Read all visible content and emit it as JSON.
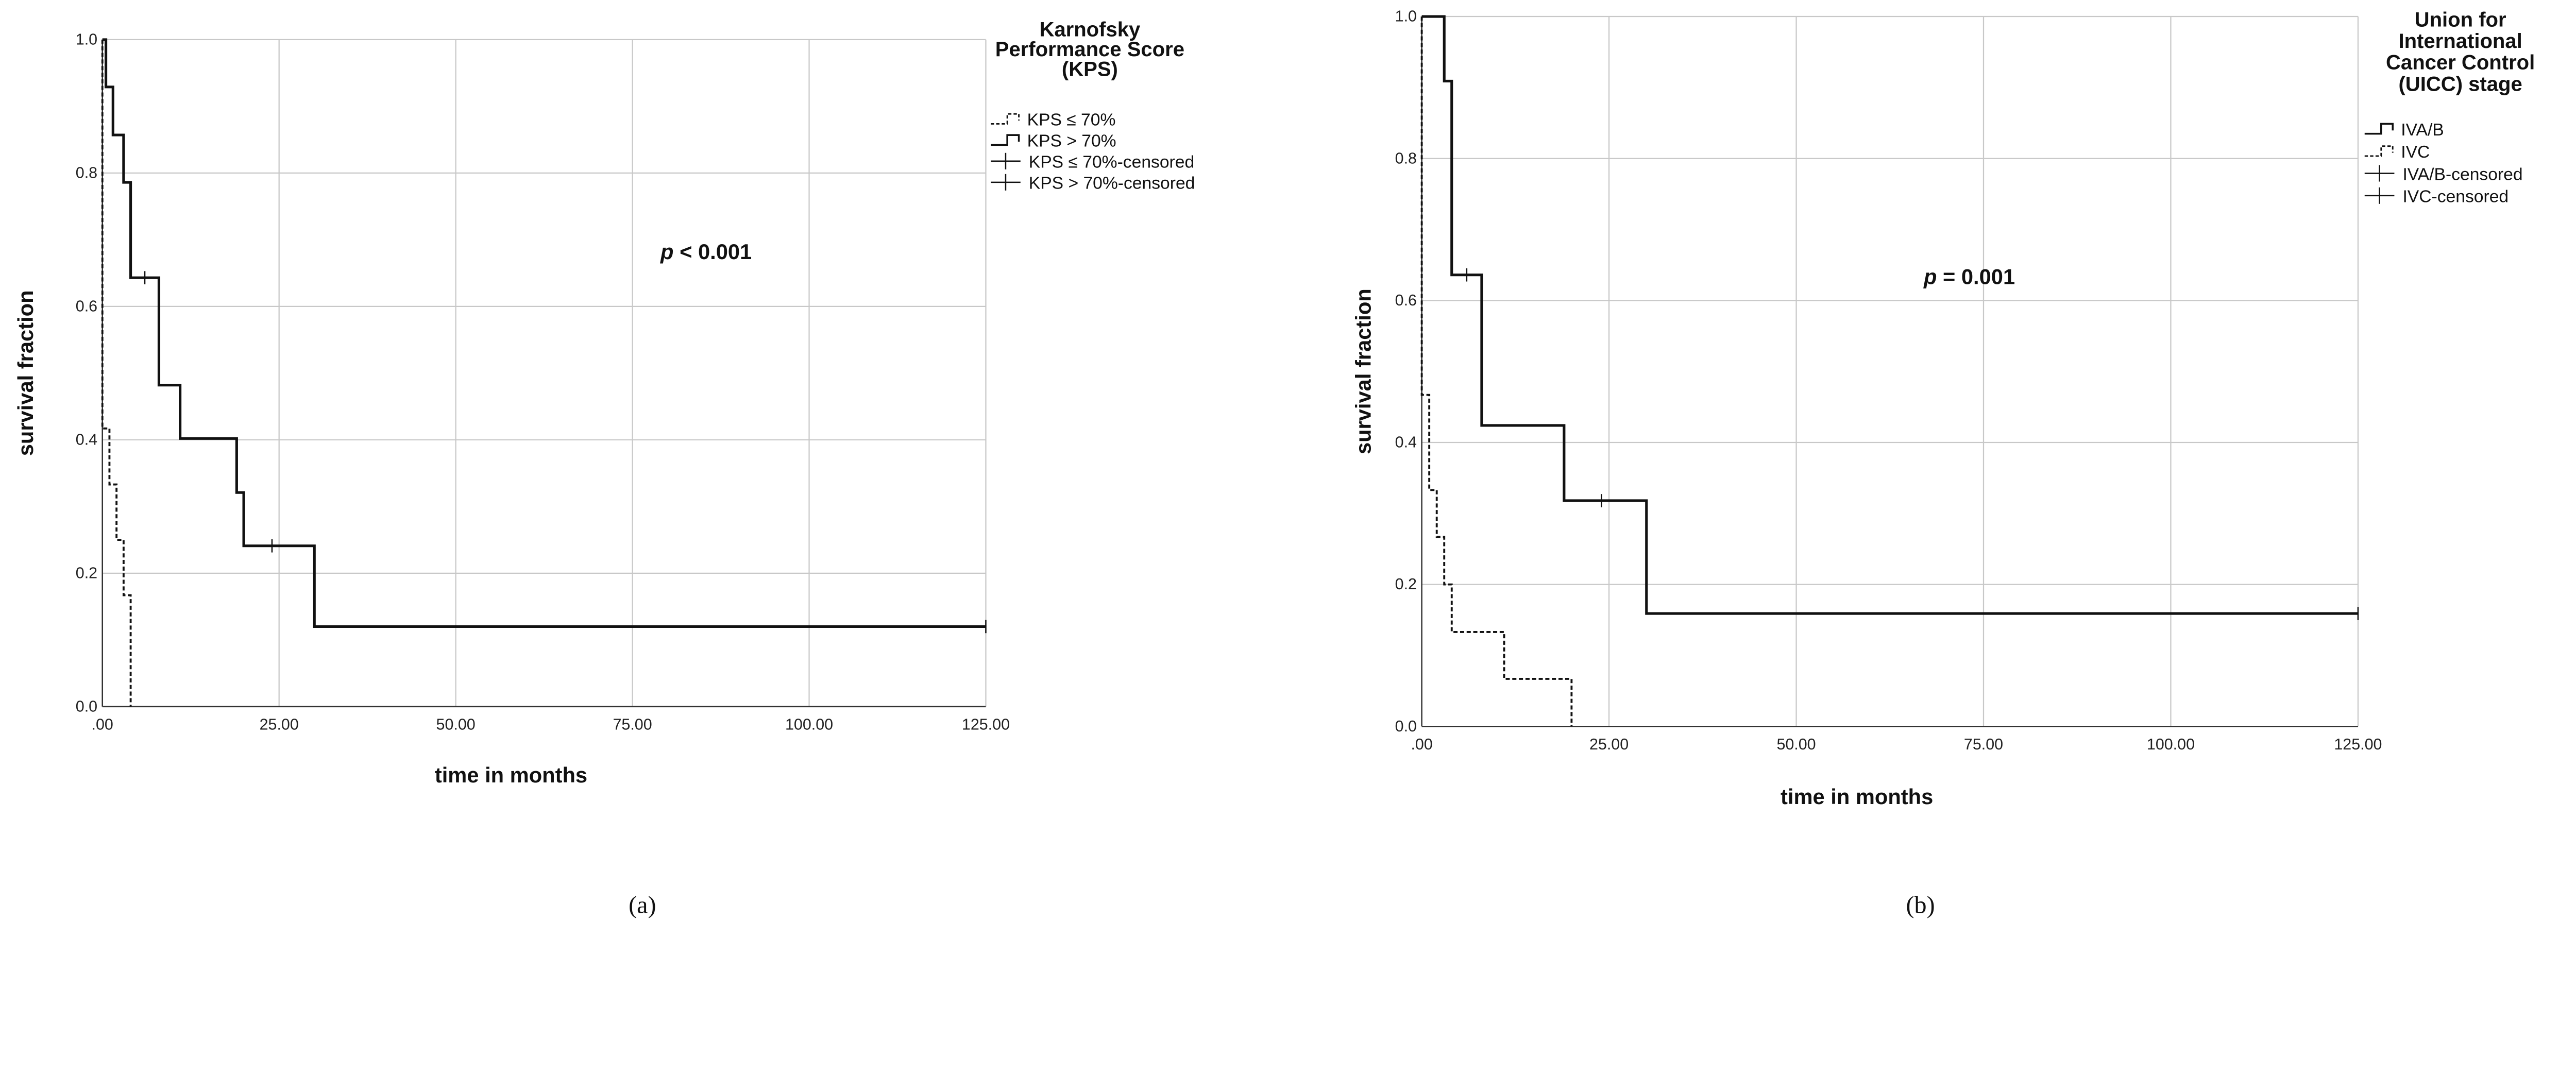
{
  "chart_data": [
    {
      "type": "line",
      "subtype": "kaplan-meier step",
      "caption": "(a)",
      "xlabel": "time in months",
      "ylabel": "survival fraction",
      "xlim": [
        0,
        125
      ],
      "ylim": [
        0,
        1
      ],
      "xticks": [
        ".00",
        "25.00",
        "50.00",
        "75.00",
        "100.00",
        "125.00"
      ],
      "yticks": [
        "0.0",
        "0.2",
        "0.4",
        "0.6",
        "0.8",
        "1.0"
      ],
      "grid": true,
      "legend_position": "right",
      "legend_title": [
        "Karnofsky",
        "Performance Score",
        "(KPS)"
      ],
      "legend": [
        "KPS ≤ 70%",
        "KPS > 70%",
        "KPS ≤ 70%-censored",
        "KPS > 70%-censored"
      ],
      "annotation": {
        "italic": "p",
        "text": " < 0.001"
      },
      "series": [
        {
          "name": "KPS ≤ 70%",
          "style": "dashed",
          "x": [
            0,
            0,
            1,
            2,
            3,
            4
          ],
          "y": [
            1.0,
            0.417,
            0.333,
            0.25,
            0.167,
            0.0
          ],
          "censored": []
        },
        {
          "name": "KPS > 70%",
          "style": "solid",
          "x": [
            0,
            0.5,
            1.5,
            3,
            4,
            8,
            11,
            19,
            20,
            30
          ],
          "y": [
            1.0,
            0.929,
            0.857,
            0.786,
            0.643,
            0.482,
            0.402,
            0.321,
            0.241,
            0.12
          ],
          "end": 125,
          "censored": [
            [
              6,
              0.643
            ],
            [
              24,
              0.241
            ],
            [
              125,
              0.12
            ]
          ]
        }
      ]
    },
    {
      "type": "line",
      "subtype": "kaplan-meier step",
      "caption": "(b)",
      "xlabel": "time in months",
      "ylabel": "survival fraction",
      "xlim": [
        0,
        125
      ],
      "ylim": [
        0,
        1
      ],
      "xticks": [
        ".00",
        "25.00",
        "50.00",
        "75.00",
        "100.00",
        "125.00"
      ],
      "yticks": [
        "0.0",
        "0.2",
        "0.4",
        "0.6",
        "0.8",
        "1.0"
      ],
      "grid": true,
      "legend_position": "right",
      "legend_title": [
        "Union for",
        "International",
        "Cancer Control",
        "(UICC) stage"
      ],
      "legend": [
        "IVA/B",
        "IVC",
        "IVA/B-censored",
        "IVC-censored"
      ],
      "annotation": {
        "italic": "p",
        "text": " = 0.001"
      },
      "series": [
        {
          "name": "IVA/B",
          "style": "solid",
          "x": [
            0,
            3,
            4,
            8,
            19,
            30
          ],
          "y": [
            1.0,
            0.909,
            0.636,
            0.424,
            0.318,
            0.159
          ],
          "end": 125,
          "censored": [
            [
              6,
              0.636
            ],
            [
              24,
              0.318
            ],
            [
              125,
              0.159
            ]
          ]
        },
        {
          "name": "IVC",
          "style": "dashed",
          "x": [
            0,
            0,
            1,
            2,
            3,
            4,
            11,
            20
          ],
          "y": [
            1.0,
            0.467,
            0.333,
            0.267,
            0.2,
            0.133,
            0.067,
            0.0
          ],
          "censored": []
        }
      ]
    }
  ]
}
